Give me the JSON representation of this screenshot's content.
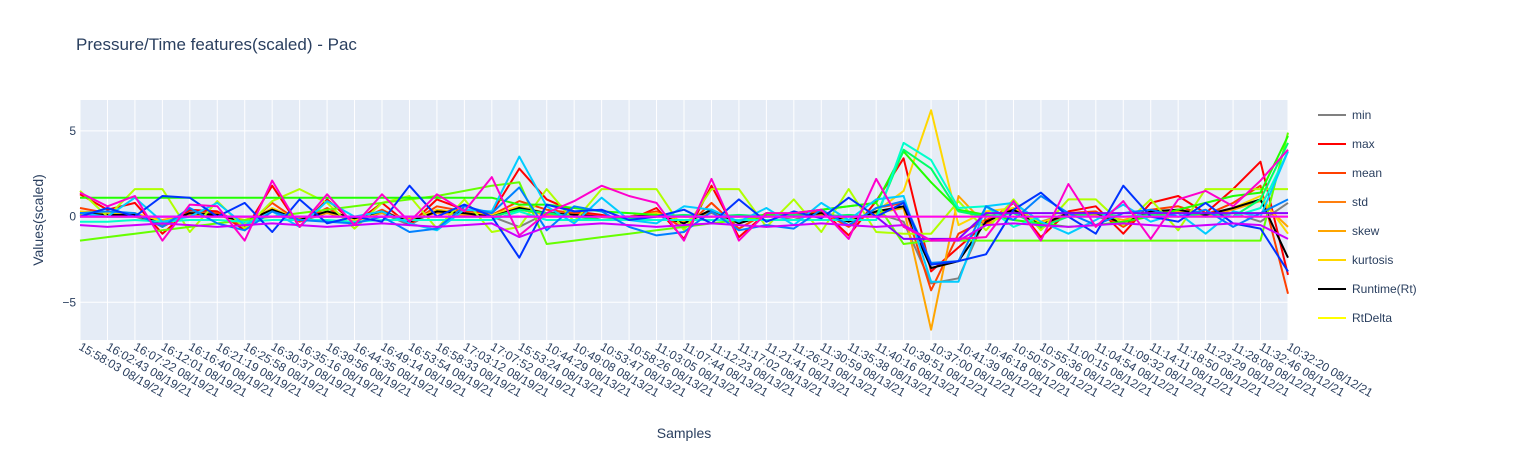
{
  "chart_data": {
    "type": "line",
    "title": "Pressure/Time features(scaled) - Pac",
    "xlabel": "Samples",
    "ylabel": "Values(scaled)",
    "ylim": [
      -7.2,
      6.8
    ],
    "yticks": [
      -5,
      0,
      5
    ],
    "grid": true,
    "legend_position": "right",
    "x": [
      "15:58:03 08/19/21",
      "16:02:43 08/19/21",
      "16:07:22 08/19/21",
      "16:12:01 08/19/21",
      "16:16:40 08/19/21",
      "16:21:19 08/19/21",
      "16:25:58 08/19/21",
      "16:30:37 08/19/21",
      "16:35:16 08/19/21",
      "16:39:56 08/19/21",
      "16:44:35 08/19/21",
      "16:49:14 08/19/21",
      "16:53:54 08/19/21",
      "16:58:33 08/19/21",
      "17:03:12 08/19/21",
      "17:07:52 08/19/21",
      "15:53:24 08/13/21",
      "10:44:29 08/13/21",
      "10:49:08 08/13/21",
      "10:53:47 08/13/21",
      "10:58:26 08/13/21",
      "11:03:05 08/13/21",
      "11:07:44 08/13/21",
      "11:12:23 08/13/21",
      "11:17:02 08/13/21",
      "11:21:41 08/13/21",
      "11:26:21 08/13/21",
      "11:30:59 08/13/21",
      "11:35:38 08/13/21",
      "11:40:16 08/13/21",
      "10:39:51 08/12/21",
      "10:37:00 08/12/21",
      "10:41:39 08/12/21",
      "10:46:18 08/12/21",
      "10:50:57 08/12/21",
      "10:55:36 08/12/21",
      "11:00:15 08/12/21",
      "11:04:54 08/12/21",
      "11:09:32 08/12/21",
      "11:14:11 08/12/21",
      "11:18:50 08/12/21",
      "11:23:29 08/12/21",
      "11:28:08 08/12/21",
      "11:32:46 08/12/21",
      "10:32:20 08/12/21"
    ],
    "series": [
      {
        "name": "min",
        "color": "#808080",
        "values": [
          0.2,
          0.0,
          0.0,
          -0.5,
          0.3,
          0.3,
          -0.5,
          0.3,
          -0.3,
          0.2,
          -0.2,
          0.2,
          -0.5,
          0.4,
          0.2,
          0.0,
          -0.6,
          0.2,
          0.2,
          -0.2,
          0.0,
          0.2,
          -0.3,
          0.2,
          -0.4,
          0.1,
          -0.2,
          0.3,
          -0.2,
          0.2,
          -0.3,
          -3.9,
          -3.6,
          0.0,
          0.3,
          -0.3,
          0.2,
          0.0,
          -0.4,
          0.2,
          0.3,
          0.0,
          0.2,
          -0.3,
          0.8
        ]
      },
      {
        "name": "max",
        "color": "#ff0000",
        "values": [
          1.3,
          0.4,
          0.8,
          -1.0,
          0.4,
          0.3,
          -0.8,
          1.8,
          -0.6,
          1.0,
          -0.4,
          0.8,
          -0.5,
          1.0,
          0.4,
          0.2,
          2.8,
          1.0,
          0.3,
          0.1,
          -0.2,
          0.5,
          -1.3,
          1.8,
          -1.2,
          0.2,
          0.1,
          0.4,
          -1.1,
          0.9,
          3.4,
          -3.2,
          -1.8,
          -0.4,
          0.8,
          -1.2,
          0.3,
          0.6,
          -1.0,
          0.8,
          1.2,
          0.2,
          1.6,
          3.2,
          -3.4
        ]
      },
      {
        "name": "mean",
        "color": "#ff4000",
        "values": [
          0.5,
          0.2,
          0.2,
          -0.6,
          0.2,
          0.2,
          -0.6,
          0.8,
          -0.3,
          0.5,
          -0.3,
          0.4,
          -0.4,
          0.6,
          0.3,
          0.1,
          0.9,
          0.4,
          0.2,
          0.0,
          0.0,
          0.3,
          -0.7,
          0.8,
          -0.7,
          0.2,
          0.0,
          0.3,
          -0.6,
          0.5,
          0.8,
          -4.3,
          -1.0,
          -0.2,
          0.5,
          -0.7,
          0.2,
          0.3,
          -0.6,
          0.4,
          0.6,
          0.1,
          0.8,
          1.8,
          -4.5
        ]
      },
      {
        "name": "std",
        "color": "#ff7f0e",
        "values": [
          0.0,
          0.0,
          0.0,
          0.0,
          0.0,
          0.0,
          0.0,
          0.0,
          0.0,
          0.0,
          0.0,
          0.0,
          0.0,
          0.0,
          0.0,
          0.0,
          0.0,
          0.0,
          0.0,
          0.0,
          0.0,
          0.0,
          0.0,
          0.0,
          0.0,
          0.0,
          0.0,
          0.0,
          0.0,
          0.0,
          0.0,
          0.0,
          0.0,
          0.0,
          0.0,
          0.0,
          0.0,
          0.0,
          0.0,
          0.0,
          0.0,
          0.0,
          0.0,
          0.0,
          0.0
        ]
      },
      {
        "name": "skew",
        "color": "#ffa500",
        "values": [
          0.1,
          0.1,
          0.1,
          -0.2,
          0.1,
          0.1,
          -0.2,
          0.3,
          -0.1,
          0.2,
          -0.1,
          0.2,
          -0.1,
          0.2,
          0.1,
          0.0,
          0.4,
          0.1,
          0.1,
          0.0,
          0.0,
          0.1,
          -0.3,
          0.3,
          -0.3,
          0.1,
          0.0,
          0.1,
          -0.2,
          0.2,
          0.5,
          -6.6,
          1.2,
          -0.5,
          0.4,
          -0.3,
          0.1,
          0.1,
          -0.2,
          0.2,
          0.3,
          0.0,
          0.4,
          0.9,
          -0.6
        ]
      },
      {
        "name": "kurtosis",
        "color": "#ffd700",
        "values": [
          0.3,
          0.2,
          0.2,
          -0.3,
          0.2,
          0.1,
          -0.4,
          0.5,
          -0.2,
          0.3,
          -0.2,
          0.3,
          -0.3,
          0.4,
          0.2,
          0.1,
          0.6,
          0.2,
          0.1,
          0.0,
          0.0,
          0.2,
          -0.4,
          0.4,
          -0.4,
          0.1,
          0.0,
          0.2,
          -0.3,
          0.3,
          1.5,
          6.2,
          -0.5,
          0.3,
          0.5,
          -0.4,
          0.2,
          0.2,
          -0.4,
          0.3,
          0.4,
          0.1,
          0.5,
          1.2,
          -1.0
        ]
      },
      {
        "name": "Runtime(Rt)",
        "color": "#000000",
        "values": [
          0.2,
          0.1,
          0.1,
          -0.4,
          0.2,
          0.1,
          -0.3,
          0.4,
          -0.2,
          0.3,
          -0.1,
          0.3,
          -0.3,
          0.3,
          0.2,
          0.0,
          0.5,
          0.2,
          0.1,
          0.0,
          0.0,
          0.1,
          -0.4,
          0.4,
          -0.4,
          0.1,
          0.0,
          0.2,
          -0.3,
          0.3,
          0.6,
          -3.0,
          -2.6,
          -0.3,
          0.4,
          -0.5,
          0.2,
          0.2,
          -0.4,
          0.3,
          0.4,
          0.1,
          0.5,
          1.0,
          -2.4
        ]
      },
      {
        "name": "RtDelta",
        "color": "#ffff00",
        "values": [
          0.0,
          0.0,
          0.0,
          0.0,
          0.0,
          0.0,
          0.0,
          0.0,
          0.0,
          0.0,
          0.0,
          0.0,
          0.0,
          0.0,
          0.0,
          0.0,
          0.0,
          0.0,
          0.0,
          0.0,
          0.0,
          0.0,
          0.0,
          0.0,
          0.0,
          0.0,
          0.0,
          0.0,
          0.0,
          0.0,
          0.0,
          0.0,
          0.0,
          0.0,
          0.0,
          0.0,
          0.0,
          0.0,
          0.0,
          0.0,
          0.0,
          0.0,
          0.0,
          0.0,
          0.0
        ]
      },
      {
        "color": "#b0ff00",
        "values": [
          1.5,
          0.0,
          1.6,
          1.6,
          -0.9,
          0.9,
          -0.7,
          0.9,
          1.6,
          0.8,
          -0.7,
          0.8,
          1.2,
          -0.7,
          1.0,
          -0.9,
          -0.6,
          1.6,
          -0.3,
          1.6,
          1.6,
          1.6,
          -0.8,
          1.6,
          1.6,
          -0.6,
          1.0,
          -0.9,
          1.6,
          -0.9,
          -1.0,
          -1.0,
          0.9,
          -0.8,
          1.0,
          -0.8,
          1.0,
          1.0,
          -0.5,
          1.0,
          -0.8,
          1.6,
          1.6,
          1.6,
          1.6
        ]
      },
      {
        "color": "#66ff00",
        "values": [
          -1.4,
          -1.2,
          -1.0,
          -0.8,
          -0.6,
          -0.4,
          -0.2,
          0.0,
          0.2,
          0.4,
          0.6,
          0.8,
          1.0,
          1.2,
          1.5,
          1.8,
          2.0,
          -1.6,
          -1.4,
          -1.2,
          -1.0,
          -0.8,
          -0.6,
          -0.4,
          -0.2,
          0.0,
          0.2,
          0.4,
          0.6,
          0.8,
          -1.6,
          -1.4,
          -1.4,
          -1.4,
          -1.4,
          -1.4,
          -1.4,
          -1.4,
          -1.4,
          -1.4,
          -1.4,
          -1.4,
          -1.4,
          -1.4,
          4.9
        ]
      },
      {
        "color": "#22ff00",
        "values": [
          1.1,
          1.1,
          1.1,
          1.1,
          1.1,
          1.1,
          1.1,
          1.1,
          1.1,
          1.1,
          1.1,
          1.1,
          1.1,
          1.1,
          1.1,
          1.1,
          0.7,
          0.7,
          0.5,
          0.3,
          0.2,
          0.1,
          0.0,
          0.0,
          0.0,
          0.1,
          0.2,
          0.4,
          0.6,
          0.8,
          3.8,
          2.0,
          0.4,
          0.1,
          -0.2,
          -0.4,
          -0.6,
          -0.5,
          -0.3,
          0.0,
          0.4,
          0.8,
          1.2,
          1.4,
          4.7
        ]
      },
      {
        "color": "#00ff66",
        "values": [
          0.0,
          0.0,
          0.0,
          0.0,
          0.0,
          0.0,
          0.0,
          0.0,
          0.0,
          0.0,
          0.0,
          0.0,
          0.0,
          0.0,
          0.0,
          0.0,
          0.4,
          0.2,
          0.0,
          -0.2,
          -0.1,
          0.0,
          0.1,
          0.0,
          0.1,
          0.0,
          0.1,
          0.0,
          0.1,
          0.0,
          3.9,
          2.8,
          0.3,
          0.0,
          0.2,
          -0.6,
          0.0,
          0.2,
          0.0,
          0.1,
          0.0,
          0.2,
          0.0,
          1.0,
          4.3
        ]
      },
      {
        "color": "#00ffcc",
        "values": [
          -0.3,
          -0.3,
          -0.2,
          -0.3,
          -0.2,
          -0.2,
          -0.3,
          -0.2,
          -0.2,
          -0.2,
          -0.3,
          -0.2,
          -0.2,
          -0.2,
          -0.2,
          -0.2,
          0.3,
          -0.2,
          -0.2,
          -0.2,
          -0.2,
          -0.2,
          -0.2,
          -0.2,
          -0.2,
          -0.2,
          -0.2,
          -0.2,
          -0.2,
          -0.2,
          4.3,
          3.3,
          0.5,
          0.6,
          -0.6,
          0.0,
          0.0,
          0.0,
          0.0,
          0.0,
          0.0,
          0.0,
          0.0,
          0.5,
          3.8
        ]
      },
      {
        "color": "#00ccff",
        "values": [
          0.2,
          0.0,
          1.1,
          -0.3,
          0.0,
          0.8,
          -0.5,
          0.3,
          -0.6,
          0.9,
          0.0,
          0.3,
          -0.4,
          -0.8,
          0.4,
          0.3,
          3.5,
          0.6,
          -0.4,
          1.1,
          -0.2,
          -0.4,
          0.6,
          0.4,
          -0.3,
          0.5,
          -0.5,
          0.8,
          -0.2,
          1.0,
          1.2,
          -3.8,
          -3.8,
          0.6,
          0.8,
          -0.3,
          -1.0,
          -0.2,
          0.7,
          -0.3,
          0.2,
          -1.0,
          0.3,
          0.0,
          3.8
        ]
      },
      {
        "color": "#0080ff",
        "values": [
          0.2,
          0.3,
          0.2,
          -0.6,
          0.5,
          -0.4,
          -0.8,
          0.3,
          -0.2,
          -0.3,
          -0.4,
          0.0,
          -0.9,
          -0.7,
          0.6,
          0.2,
          1.7,
          -0.8,
          0.6,
          0.3,
          -0.6,
          -1.1,
          -0.9,
          0.3,
          -0.8,
          -0.5,
          -0.7,
          0.4,
          -0.5,
          0.5,
          0.9,
          -2.7,
          -2.6,
          0.6,
          -0.2,
          1.2,
          0.2,
          -0.5,
          0.2,
          0.4,
          0.0,
          0.4,
          -0.6,
          0.2,
          1.0
        ]
      },
      {
        "color": "#0033ff",
        "values": [
          0.0,
          0.5,
          0.0,
          1.2,
          1.1,
          0.0,
          0.8,
          -0.9,
          1.0,
          -0.4,
          0.0,
          -0.3,
          1.8,
          0.0,
          0.7,
          0.0,
          -2.4,
          0.7,
          0.3,
          0.4,
          -0.2,
          0.0,
          0.4,
          -0.4,
          1.0,
          -0.3,
          0.3,
          -0.1,
          1.1,
          0.0,
          0.8,
          -2.8,
          -2.6,
          -2.2,
          0.4,
          1.4,
          0.0,
          -1.0,
          1.8,
          0.0,
          -0.3,
          0.8,
          -0.4,
          -0.7,
          -3.2
        ]
      },
      {
        "color": "#8800ff",
        "values": [
          0.0,
          0.0,
          0.0,
          0.0,
          0.0,
          0.0,
          0.0,
          0.0,
          0.0,
          0.0,
          0.0,
          0.0,
          0.0,
          0.0,
          0.0,
          0.0,
          0.0,
          0.0,
          0.0,
          0.0,
          0.0,
          0.0,
          0.0,
          0.0,
          0.0,
          0.0,
          0.0,
          0.0,
          0.0,
          0.0,
          -1.3,
          -1.3,
          -1.3,
          0.2,
          0.2,
          0.2,
          0.2,
          0.2,
          0.2,
          0.2,
          0.2,
          0.2,
          0.2,
          0.2,
          0.2
        ]
      },
      {
        "color": "#cc00ff",
        "values": [
          -0.5,
          -0.6,
          -0.5,
          -0.4,
          -0.5,
          -0.6,
          -0.5,
          -0.4,
          -0.5,
          -0.6,
          -0.5,
          -0.4,
          -0.5,
          -0.6,
          -0.5,
          -0.4,
          -1.2,
          -0.6,
          -0.5,
          -0.4,
          -0.5,
          -0.6,
          -0.5,
          -0.4,
          -0.5,
          -0.6,
          -0.5,
          -0.4,
          -0.5,
          -0.6,
          -0.5,
          -1.4,
          -1.4,
          -0.5,
          -0.4,
          -0.5,
          -0.6,
          -0.5,
          -0.4,
          -0.5,
          -0.6,
          -0.5,
          -0.4,
          -0.5,
          -1.3
        ]
      },
      {
        "color": "#ff00cc",
        "values": [
          1.4,
          0.6,
          1.2,
          -1.4,
          0.7,
          0.6,
          -1.4,
          2.1,
          -0.6,
          1.3,
          -0.5,
          1.3,
          -0.3,
          1.3,
          0.3,
          2.3,
          -1.1,
          0.2,
          0.9,
          1.8,
          1.2,
          0.8,
          -1.4,
          2.2,
          -1.4,
          0.2,
          0.2,
          0.4,
          -1.3,
          2.2,
          -0.6,
          -1.4,
          -1.3,
          -1.2,
          0.9,
          -1.4,
          1.9,
          -0.6,
          0.9,
          -1.3,
          1.0,
          1.5,
          0.6,
          2.1,
          3.9
        ]
      },
      {
        "color": "#ff00ff",
        "values": [
          0.0,
          0.0,
          0.0,
          0.0,
          0.0,
          0.0,
          0.0,
          0.0,
          0.0,
          0.0,
          0.0,
          0.0,
          0.0,
          0.0,
          0.0,
          0.0,
          0.0,
          0.0,
          0.0,
          0.0,
          0.0,
          0.0,
          0.0,
          0.0,
          0.0,
          0.0,
          0.0,
          0.0,
          0.0,
          0.0,
          0.0,
          0.0,
          0.0,
          0.0,
          0.0,
          0.0,
          0.0,
          0.0,
          0.0,
          0.0,
          0.0,
          0.0,
          0.0,
          0.0,
          0.0
        ]
      }
    ]
  }
}
